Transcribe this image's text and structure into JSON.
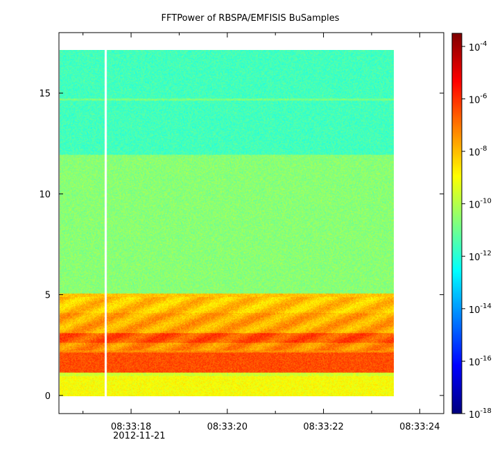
{
  "chart_data": {
    "type": "heatmap",
    "title": "FFTPower of RBSPA/EMFISIS  BuSamples",
    "xlabel": "",
    "ylabel": "",
    "x_ticks": [
      {
        "label": "08:33:18",
        "t": 18
      },
      {
        "label": "08:33:20",
        "t": 20
      },
      {
        "label": "08:33:22",
        "t": 22
      },
      {
        "label": "08:33:24",
        "t": 24
      }
    ],
    "x_minor_ticks": [
      17,
      19,
      21,
      23
    ],
    "x_date_label": "2012-11-21",
    "xlim": [
      16.5,
      24.5
    ],
    "data_time_range": [
      16.5,
      23.45
    ],
    "gap_time": 17.45,
    "y_ticks": [
      0,
      5,
      10,
      15
    ],
    "ylim": [
      -0.9,
      18.0
    ],
    "data_y_range": [
      0,
      17.5
    ],
    "bands": [
      {
        "y0": 0.0,
        "y1": 1.0,
        "level": -9.0,
        "note": "yellow"
      },
      {
        "y0": 1.0,
        "y1": 1.2,
        "level": -9.6,
        "note": "yellow-green"
      },
      {
        "y0": 1.2,
        "y1": 2.2,
        "level": -6.4,
        "note": "orange-red"
      },
      {
        "y0": 2.2,
        "y1": 2.7,
        "level": -7.3,
        "note": "orange"
      },
      {
        "y0": 2.7,
        "y1": 3.2,
        "level": -6.5,
        "note": "orange-red"
      },
      {
        "y0": 3.2,
        "y1": 4.2,
        "level": -7.7,
        "note": "yellow-orange"
      },
      {
        "y0": 4.2,
        "y1": 5.2,
        "level": -8.1,
        "note": "yellow"
      },
      {
        "y0": 5.2,
        "y1": 12.2,
        "level": -10.6,
        "note": "green"
      },
      {
        "y0": 12.2,
        "y1": 17.5,
        "level": -11.6,
        "note": "light green"
      }
    ],
    "line_15": {
      "y": 15.0,
      "level": -10.8
    },
    "colorbar": {
      "scale": "log",
      "range_exp": [
        -18,
        -3.5
      ],
      "ticks": [
        {
          "label": "10",
          "exp": "-4",
          "value": -4
        },
        {
          "label": "10",
          "exp": "-6",
          "value": -6
        },
        {
          "label": "10",
          "exp": "-8",
          "value": -8
        },
        {
          "label": "10",
          "exp": "-10",
          "value": -10
        },
        {
          "label": "10",
          "exp": "-12",
          "value": -12
        },
        {
          "label": "10",
          "exp": "-14",
          "value": -14
        },
        {
          "label": "10",
          "exp": "-16",
          "value": -16
        },
        {
          "label": "10",
          "exp": "-18",
          "value": -18
        }
      ],
      "colormap": "jet"
    }
  }
}
